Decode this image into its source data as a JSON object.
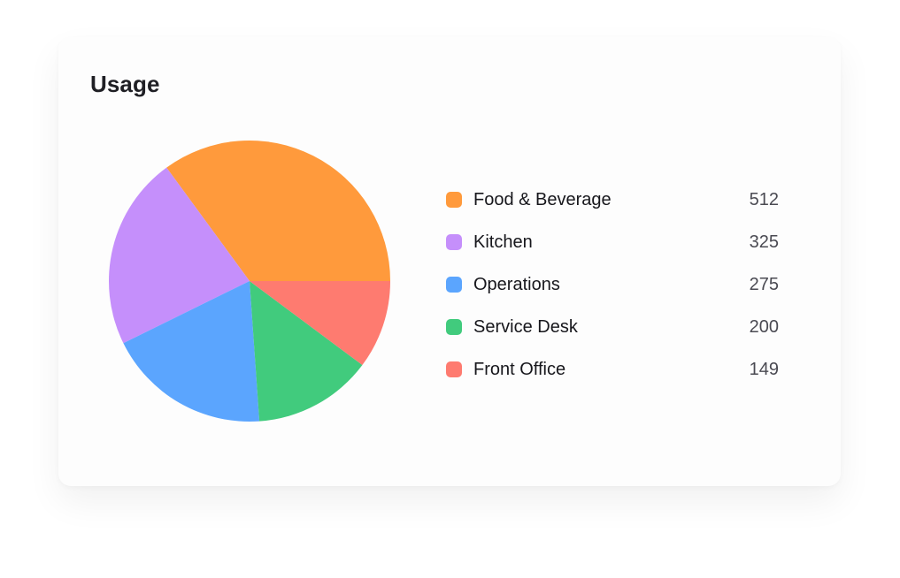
{
  "card": {
    "title": "Usage"
  },
  "chart_data": {
    "type": "pie",
    "categories": [
      "Food & Beverage",
      "Kitchen",
      "Operations",
      "Service Desk",
      "Front Office"
    ],
    "values": [
      512,
      325,
      275,
      200,
      149
    ],
    "colors": [
      "#FF9A3C",
      "#C58FFB",
      "#5BA5FE",
      "#41CB7D",
      "#FE7B70"
    ],
    "legend": "right"
  }
}
